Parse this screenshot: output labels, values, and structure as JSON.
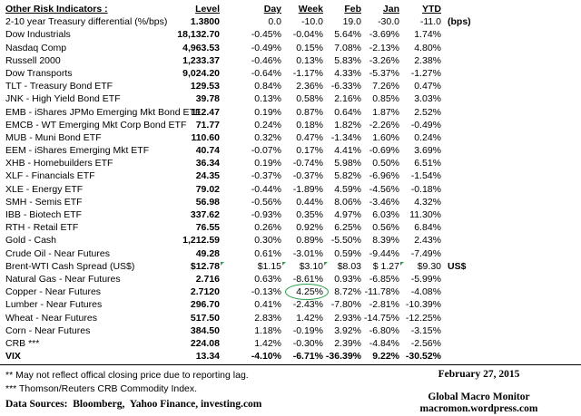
{
  "table": {
    "title": "Other Risk Indicators :",
    "columns": [
      "Level",
      "Day",
      "Week",
      "Feb",
      "Jan",
      "YTD"
    ],
    "rows": [
      {
        "label": "2-10 year Treasury differential (%/bps)",
        "level": "1.3800",
        "day": "0.0",
        "week": "-10.0",
        "feb": "19.0",
        "jan": "-30.0",
        "ytd": "-11.0",
        "note": "(bps)"
      },
      {
        "label": "Dow Industrials",
        "level": "18,132.70",
        "day": "-0.45%",
        "week": "-0.04%",
        "feb": "5.64%",
        "jan": "-3.69%",
        "ytd": "1.74%"
      },
      {
        "label": "Nasdaq Comp",
        "level": "4,963.53",
        "day": "-0.49%",
        "week": "0.15%",
        "feb": "7.08%",
        "jan": "-2.13%",
        "ytd": "4.80%"
      },
      {
        "label": "Russell 2000",
        "level": "1,233.37",
        "day": "-0.46%",
        "week": "0.13%",
        "feb": "5.83%",
        "jan": "-3.26%",
        "ytd": "2.38%"
      },
      {
        "label": "Dow Transports",
        "level": "9,024.20",
        "day": "-0.64%",
        "week": "-1.17%",
        "feb": "4.33%",
        "jan": "-5.37%",
        "ytd": "-1.27%"
      },
      {
        "label": "TLT - Treasury Bond ETF",
        "level": "129.53",
        "day": "0.84%",
        "week": "2.36%",
        "feb": "-6.33%",
        "jan": "7.26%",
        "ytd": "0.47%"
      },
      {
        "label": "JNK - High Yield Bond ETF",
        "level": "39.78",
        "day": "0.13%",
        "week": "0.58%",
        "feb": "2.16%",
        "jan": "0.85%",
        "ytd": "3.03%"
      },
      {
        "label": "EMB - iShares JPMo Emerging Mkt Bond ETF",
        "level": "112.47",
        "day": "0.19%",
        "week": "0.87%",
        "feb": "0.64%",
        "jan": "1.87%",
        "ytd": "2.52%"
      },
      {
        "label": "EMCB - WT Emerging Mkt Corp Bond ETF",
        "level": "71.77",
        "day": "0.24%",
        "week": "0.18%",
        "feb": "1.82%",
        "jan": "-2.26%",
        "ytd": "-0.49%"
      },
      {
        "label": "MUB - Muni Bond ETF",
        "level": "110.60",
        "day": "0.32%",
        "week": "0.47%",
        "feb": "-1.34%",
        "jan": "1.60%",
        "ytd": "0.24%"
      },
      {
        "label": "EEM - iShares Emerging Mkt ETF",
        "level": "40.74",
        "day": "-0.07%",
        "week": "0.17%",
        "feb": "4.41%",
        "jan": "-0.69%",
        "ytd": "3.69%"
      },
      {
        "label": "XHB - Homebuilders ETF",
        "level": "36.34",
        "day": "0.19%",
        "week": "-0.74%",
        "feb": "5.98%",
        "jan": "0.50%",
        "ytd": "6.51%"
      },
      {
        "label": "XLF - Financials ETF",
        "level": "24.35",
        "day": "-0.37%",
        "week": "-0.37%",
        "feb": "5.82%",
        "jan": "-6.96%",
        "ytd": "-1.54%"
      },
      {
        "label": "XLE - Energy ETF",
        "level": "79.02",
        "day": "-0.44%",
        "week": "-1.89%",
        "feb": "4.59%",
        "jan": "-4.56%",
        "ytd": "-0.18%"
      },
      {
        "label": "SMH - Semis ETF",
        "level": "56.98",
        "day": "-0.56%",
        "week": "0.44%",
        "feb": "8.06%",
        "jan": "-3.46%",
        "ytd": "4.32%"
      },
      {
        "label": "IBB - Biotech ETF",
        "level": "337.62",
        "day": "-0.93%",
        "week": "0.35%",
        "feb": "4.97%",
        "jan": "6.03%",
        "ytd": "11.30%"
      },
      {
        "label": "RTH - Retail ETF",
        "level": "76.55",
        "day": "0.26%",
        "week": "0.92%",
        "feb": "6.25%",
        "jan": "0.56%",
        "ytd": "6.84%"
      },
      {
        "label": "Gold - Cash",
        "level": "1,212.59",
        "day": "0.30%",
        "week": "0.89%",
        "feb": "-5.50%",
        "jan": "8.39%",
        "ytd": "2.43%"
      },
      {
        "label": "Crude Oil - Near Futures",
        "level": "49.28",
        "day": "0.61%",
        "week": "-3.01%",
        "feb": "0.59%",
        "jan": "-9.44%",
        "ytd": "-7.49%"
      },
      {
        "label": "Brent-WTI Cash Spread (US$)",
        "level": "$12.78",
        "day": "$1.15",
        "week": "$3.10",
        "feb": "$8.03",
        "jan": "$ 1.27",
        "ytd": "$9.30",
        "note": "US$",
        "comments": [
          "day",
          "week",
          "feb",
          "ytd"
        ]
      },
      {
        "label": "Natural Gas - Near Futures",
        "level": "2.716",
        "day": "0.63%",
        "week": "-8.61%",
        "feb": "0.93%",
        "jan": "-6.85%",
        "ytd": "-5.99%"
      },
      {
        "label": "Copper - Near Futures",
        "level": "2.7120",
        "day": "-0.13%",
        "week": "4.25%",
        "feb": "8.72%",
        "jan": "-11.78%",
        "ytd": "-4.08%",
        "circled": "week"
      },
      {
        "label": "Lumber - Near Futures",
        "level": "296.70",
        "day": "0.41%",
        "week": "-2.43%",
        "feb": "-7.80%",
        "jan": "-2.81%",
        "ytd": "-10.39%"
      },
      {
        "label": "Wheat - Near Futures",
        "level": "517.50",
        "day": "2.83%",
        "week": "1.42%",
        "feb": "2.93%",
        "jan": "-14.75%",
        "ytd": "-12.25%"
      },
      {
        "label": "Corn - Near Futures",
        "level": "384.50",
        "day": "1.18%",
        "week": "-0.19%",
        "feb": "3.92%",
        "jan": "-6.80%",
        "ytd": "-3.15%"
      },
      {
        "label": "CRB ***",
        "level": "224.08",
        "day": "1.42%",
        "week": "-0.30%",
        "feb": "2.39%",
        "jan": "-4.84%",
        "ytd": "-2.56%"
      },
      {
        "label": "VIX",
        "level": "13.34",
        "day": "-4.10%",
        "week": "-6.71%",
        "feb": "-36.39%",
        "jan": "9.22%",
        "ytd": "-30.52%",
        "bold": true
      }
    ]
  },
  "footnotes": [
    "** May not reflect offical closing price due to reporting lag.",
    "*** Thomson/Reuters CRB Commodity Index.",
    "Data Sources:  Bloomberg,  Yahoo Finance, investing.com"
  ],
  "footer_right": {
    "date": "February 27, 2015",
    "brand": "Global Macro Monitor",
    "url": "macromon.wordpress.com"
  },
  "annotations": {
    "circled_value": "4.25%",
    "circled_row": "Copper - Near Futures",
    "comment_marker_row": "Brent-WTI Cash Spread (US$)"
  },
  "colors": {
    "annotation_green": "#2EA24D",
    "text": "#000000",
    "background": "#FFFFFF"
  }
}
